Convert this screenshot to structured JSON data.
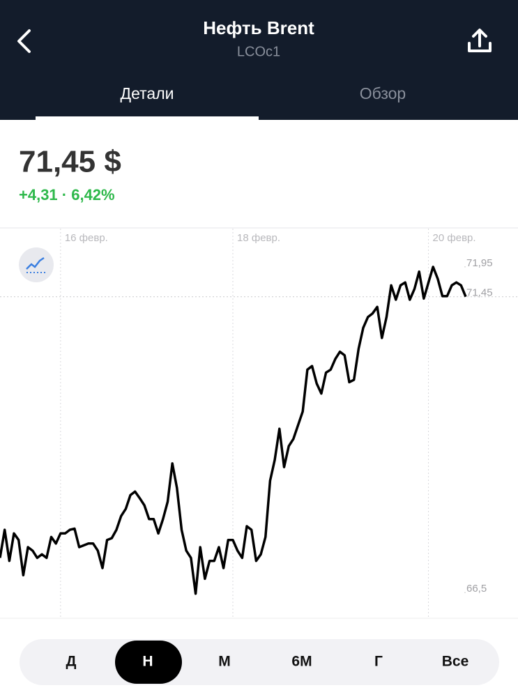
{
  "header": {
    "title": "Нефть Brent",
    "subtitle": "LCOc1"
  },
  "tabs": [
    "Детали",
    "Обзор"
  ],
  "quote": {
    "price": "71,45 $",
    "change": "+4,31 · 6,42%"
  },
  "ranges": [
    "Д",
    "Н",
    "М",
    "6М",
    "Г",
    "Все"
  ],
  "chart_data": {
    "type": "line",
    "xticks": [
      {
        "value": 13,
        "label": "16 февр."
      },
      {
        "value": 50,
        "label": "18 февр."
      },
      {
        "value": 92,
        "label": "20 февр."
      }
    ],
    "ylim": [
      66.07,
      72.59
    ],
    "yticks": [
      {
        "value": 71.95,
        "label": "71,95"
      },
      {
        "value": 71.45,
        "label": "71,45"
      },
      {
        "value": 66.5,
        "label": "66,5"
      }
    ],
    "series": [
      {
        "color": "#000000",
        "values": [
          67.08,
          67.55,
          67.03,
          67.49,
          67.38,
          66.79,
          67.26,
          67.2,
          67.08,
          67.14,
          67.08,
          67.43,
          67.32,
          67.49,
          67.49,
          67.55,
          67.57,
          67.26,
          67.29,
          67.32,
          67.32,
          67.2,
          66.91,
          67.38,
          67.41,
          67.55,
          67.78,
          67.9,
          68.13,
          68.19,
          68.08,
          67.96,
          67.73,
          67.73,
          67.49,
          67.73,
          68.02,
          68.66,
          68.25,
          67.55,
          67.2,
          67.08,
          66.48,
          67.26,
          66.73,
          67.03,
          67.03,
          67.26,
          66.91,
          67.38,
          67.38,
          67.2,
          67.08,
          67.61,
          67.55,
          67.03,
          67.14,
          67.43,
          68.37,
          68.72,
          69.24,
          68.6,
          68.95,
          69.07,
          69.3,
          69.53,
          70.23,
          70.29,
          70.0,
          69.83,
          70.18,
          70.23,
          70.41,
          70.53,
          70.47,
          70.02,
          70.06,
          70.58,
          70.93,
          71.11,
          71.17,
          71.28,
          70.76,
          71.11,
          71.64,
          71.4,
          71.64,
          71.69,
          71.4,
          71.58,
          71.87,
          71.42,
          71.69,
          71.95,
          71.75,
          71.46,
          71.46,
          71.64,
          71.69,
          71.64,
          71.45
        ]
      }
    ]
  }
}
